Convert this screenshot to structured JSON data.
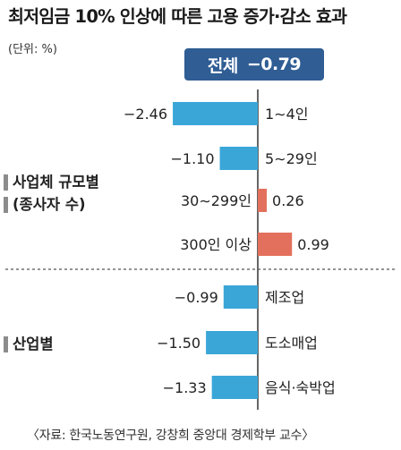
{
  "title": "최저임금 10% 인상에 따른 고용 증가·감소 효과",
  "unit": "(단위: %)",
  "total": {
    "label": "전체",
    "value": "−0.79"
  },
  "groups": [
    {
      "label_lines": [
        "사업체 규모별",
        "(종사자 수)"
      ]
    },
    {
      "label_lines": [
        "산업별"
      ]
    }
  ],
  "source": "〈자료: 한국노동연구원, 강창희 중앙대 경제학부 교수〉",
  "colors": {
    "negative": "#3aa6d8",
    "positive": "#e2705c",
    "total_box": "#2f5d94",
    "axis": "#333333",
    "separator": "#555555"
  },
  "chart_data": {
    "type": "bar",
    "orientation": "horizontal",
    "categories": [
      "1∼4인",
      "5∼29인",
      "30∼299인",
      "300인 이상",
      "제조업",
      "도소매업",
      "음식·숙박업"
    ],
    "values": [
      -2.46,
      -1.1,
      0.26,
      0.99,
      -0.99,
      -1.5,
      -1.33
    ],
    "value_labels": [
      "−2.46",
      "−1.10",
      "0.26",
      "0.99",
      "−0.99",
      "−1.50",
      "−1.33"
    ],
    "group_of_category": [
      0,
      0,
      0,
      0,
      1,
      1,
      1
    ],
    "title": "최저임금 10% 인상에 따른 고용 증가·감소 효과",
    "ylabel": "",
    "xlabel": ""
  }
}
